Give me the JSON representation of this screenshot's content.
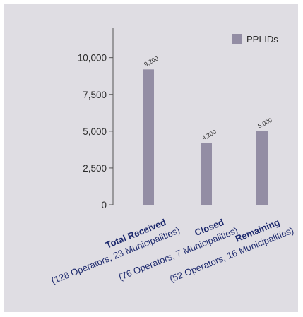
{
  "chart_data": {
    "type": "bar",
    "categories": [
      "Total Received",
      "Closed",
      "Remaining"
    ],
    "category_details": [
      "(128 Operators, 23 Municipalities)",
      "(76 Operators, 7 Municipalities)",
      "(52 Operators, 16 Municipalities)"
    ],
    "series": [
      {
        "name": "PPI-IDs",
        "values": [
          9200,
          4200,
          5000
        ]
      }
    ],
    "value_labels": [
      "9,200",
      "4,200",
      "5,000"
    ],
    "y_ticks": [
      0,
      2500,
      5000,
      7500,
      10000
    ],
    "y_tick_labels": [
      "0",
      "2,500",
      "5,000",
      "7,500",
      "10,000"
    ],
    "ylim": [
      0,
      12000
    ],
    "title": "",
    "xlabel": "",
    "ylabel": "",
    "legend_position": "top-right",
    "grid": false,
    "colors": {
      "bar": "#938da4",
      "background": "#dfdde3",
      "axis": "#555555",
      "category_text": "#1e2a6e"
    }
  }
}
